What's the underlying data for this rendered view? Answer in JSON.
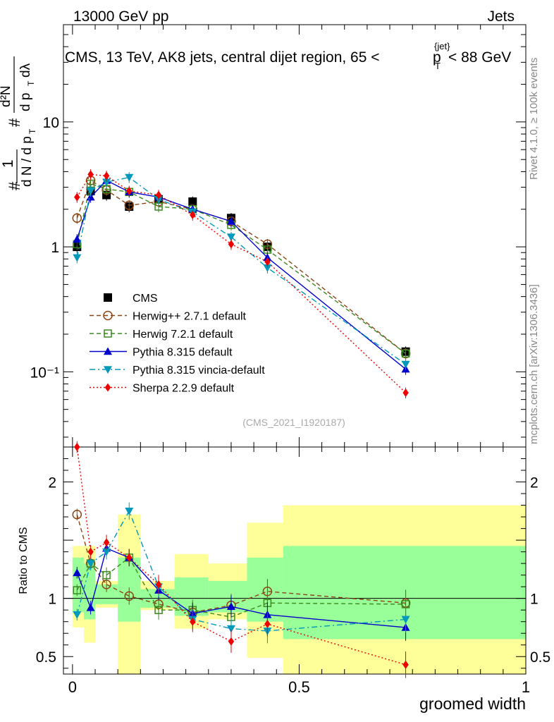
{
  "header": {
    "left": "13000 GeV pp",
    "right": "Jets"
  },
  "titles": {
    "main": "CMS, 13 TeV, AK8 jets, central dijet region, 65 <",
    "main_p": "p",
    "main_sup": "{jet}",
    "main_sub": "T",
    "main_end": "< 88 GeV",
    "side_rivet": "Rivet 4.1.0, ≥ 100k events",
    "side_mcplots": "mcplots.cern.ch [arXiv:1306.3436]",
    "analysis_id": "(CMS_2021_I1920187)",
    "ylabel_main": "#  1 / dN/dp_T  #  d²N / dp_T dλ",
    "ylabel_ratio": "Ratio to CMS",
    "xlabel": "groomed width"
  },
  "chart_data": {
    "type": "line",
    "x_axis": {
      "label": "groomed width",
      "range": [
        -0.02,
        1.0
      ],
      "ticks": [
        0,
        0.5,
        1
      ],
      "tick_labels": [
        "0",
        "0.5",
        "1"
      ]
    },
    "main_panel": {
      "y_scale": "log",
      "y_range": [
        0.025,
        60
      ],
      "y_ticks": [
        0.1,
        1,
        10
      ],
      "y_tick_labels": [
        "10⁻¹",
        "1",
        "10"
      ]
    },
    "ratio_panel": {
      "y_range": [
        0.35,
        2.3
      ],
      "y_ticks": [
        0.5,
        1,
        2
      ],
      "y_tick_labels": [
        "0.5",
        "1",
        "2"
      ],
      "reference": 1,
      "band_edges": [
        0,
        0.025,
        0.05,
        0.1,
        0.15,
        0.225,
        0.3,
        0.385,
        0.465,
        1.0
      ],
      "band_inner": [
        [
          0.88,
          1.35
        ],
        [
          0.82,
          1.3
        ],
        [
          0.95,
          1.12
        ],
        [
          0.8,
          1.35
        ],
        [
          0.92,
          1.08
        ],
        [
          0.85,
          1.18
        ],
        [
          0.88,
          1.15
        ],
        [
          0.8,
          1.35
        ],
        [
          0.65,
          1.45
        ]
      ],
      "band_outer": [
        [
          0.75,
          1.45
        ],
        [
          0.62,
          1.45
        ],
        [
          0.92,
          1.15
        ],
        [
          0.35,
          1.72
        ],
        [
          0.9,
          1.15
        ],
        [
          0.74,
          1.38
        ],
        [
          0.82,
          1.3
        ],
        [
          0.49,
          1.65
        ],
        [
          0.35,
          1.8
        ]
      ]
    },
    "series": [
      {
        "name": "CMS",
        "label": "CMS",
        "color": "#000000",
        "marker": "square-filled",
        "line": "none",
        "x": [
          0.01,
          0.04,
          0.075,
          0.125,
          0.19,
          0.265,
          0.35,
          0.43,
          0.735
        ],
        "y": [
          1.0,
          2.8,
          2.6,
          2.1,
          2.4,
          2.3,
          1.7,
          1.0,
          0.145
        ],
        "ratio": [
          1,
          1,
          1,
          1,
          1,
          1,
          1,
          1,
          1
        ]
      },
      {
        "name": "herwig-pp",
        "label": "Herwig++ 2.7.1 default",
        "color": "#8B4513",
        "marker": "circle-open",
        "line": "dashed",
        "x": [
          0.01,
          0.04,
          0.075,
          0.125,
          0.19,
          0.265,
          0.35,
          0.43,
          0.735
        ],
        "y": [
          1.7,
          3.4,
          2.85,
          2.15,
          2.3,
          2.0,
          1.6,
          1.05,
          0.14
        ],
        "ratio": [
          1.72,
          1.3,
          1.12,
          1.02,
          0.95,
          0.88,
          0.94,
          1.06,
          0.96
        ]
      },
      {
        "name": "herwig-7",
        "label": "Herwig 7.2.1 default",
        "color": "#3a8a1e",
        "marker": "square-open",
        "line": "dashed",
        "x": [
          0.01,
          0.04,
          0.075,
          0.125,
          0.19,
          0.265,
          0.35,
          0.43,
          0.735
        ],
        "y": [
          1.05,
          3.2,
          2.9,
          2.75,
          2.1,
          2.0,
          1.5,
          0.95,
          0.14
        ],
        "ratio": [
          1.07,
          1.3,
          1.2,
          1.35,
          0.9,
          0.9,
          0.84,
          0.96,
          0.95
        ]
      },
      {
        "name": "pythia",
        "label": "Pythia 8.315 default",
        "color": "#0000CC",
        "marker": "triangle-up",
        "line": "solid",
        "x": [
          0.01,
          0.04,
          0.075,
          0.125,
          0.19,
          0.265,
          0.35,
          0.43,
          0.735
        ],
        "y": [
          1.15,
          2.5,
          3.4,
          2.75,
          2.5,
          2.0,
          1.6,
          0.82,
          0.105
        ],
        "ratio": [
          1.22,
          0.92,
          1.43,
          1.35,
          1.07,
          0.87,
          0.93,
          0.86,
          0.75
        ]
      },
      {
        "name": "pythia-vincia",
        "label": "Pythia 8.315 vincia-default",
        "color": "#0099BB",
        "marker": "triangle-down",
        "line": "dashdot",
        "x": [
          0.01,
          0.04,
          0.075,
          0.125,
          0.19,
          0.265,
          0.35,
          0.43,
          0.735
        ],
        "y": [
          0.82,
          2.8,
          3.3,
          3.6,
          2.4,
          1.9,
          1.2,
          0.68,
          0.115
        ],
        "ratio": [
          0.86,
          1.3,
          1.4,
          1.75,
          1.1,
          0.82,
          0.74,
          0.72,
          0.82
        ]
      },
      {
        "name": "sherpa",
        "label": "Sherpa 2.2.9 default",
        "color": "#EE0000",
        "marker": "diamond",
        "line": "dotted",
        "x": [
          0.01,
          0.04,
          0.075,
          0.125,
          0.19,
          0.265,
          0.35,
          0.43,
          0.735
        ],
        "y": [
          2.5,
          3.8,
          3.7,
          2.8,
          2.6,
          1.8,
          1.05,
          0.76,
          0.068
        ],
        "ratio": [
          2.3,
          1.4,
          1.48,
          1.35,
          1.12,
          0.8,
          0.63,
          0.78,
          0.43
        ]
      }
    ]
  }
}
